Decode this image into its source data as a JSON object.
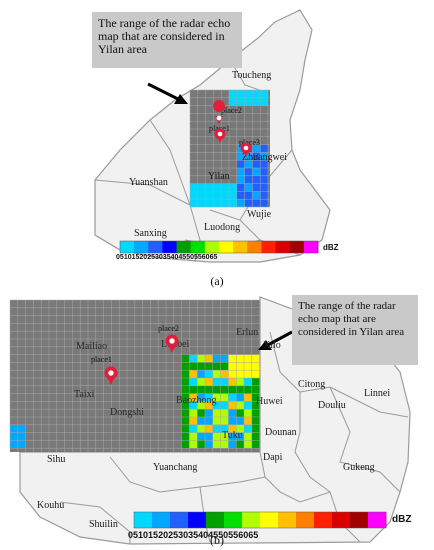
{
  "panels": [
    {
      "label": "(a)",
      "callout": "The range of the radar echo map that are considered in Yilan area",
      "places": [
        "Toucheng",
        "Yuanshan",
        "Yilan",
        "Zhuangwei",
        "Wujie",
        "Luodong",
        "Sanxing"
      ],
      "markers": [
        "place1",
        "place2",
        "place3"
      ],
      "colorbar": {
        "ticks": [
          "0",
          "5",
          "10",
          "15",
          "20",
          "25",
          "30",
          "35",
          "40",
          "45",
          "50",
          "55",
          "60",
          "65"
        ],
        "unit": "dBZ"
      }
    },
    {
      "label": "(b)",
      "callout": "The range of the radar echo map that are considered in Yilan area",
      "places": [
        "Mailiao",
        "Taixi",
        "Dongshi",
        "Baozhong",
        "Lunbei",
        "Erlun",
        "Xilo",
        "Citong",
        "Linnei",
        "Huwei",
        "Douliu",
        "Tuku",
        "Dounan",
        "Dapi",
        "Sihu",
        "Yuanchang",
        "Gukeng",
        "Kouhu",
        "Shuilin"
      ],
      "markers": [
        "place1",
        "place2"
      ],
      "colorbar": {
        "ticks": [
          "0",
          "5",
          "10",
          "15",
          "20",
          "25",
          "30",
          "35",
          "40",
          "45",
          "50",
          "55",
          "60",
          "65"
        ],
        "unit": "dBZ"
      }
    }
  ],
  "colors": {
    "map_land": "#f1f1f1",
    "map_border": "#9a9a9a",
    "grid_fill": "#6e6e6e",
    "grid_line": "#a8a8a8",
    "marker": "#e0203a",
    "callout_bg": "#c9c9c9",
    "colorbar": [
      "#00d8ff",
      "#00a8ff",
      "#2060ff",
      "#0000ff",
      "#00a000",
      "#00e000",
      "#b0ff00",
      "#ffff00",
      "#ffc000",
      "#ff8000",
      "#ff2000",
      "#d80000",
      "#a00000",
      "#ff00ff"
    ]
  }
}
